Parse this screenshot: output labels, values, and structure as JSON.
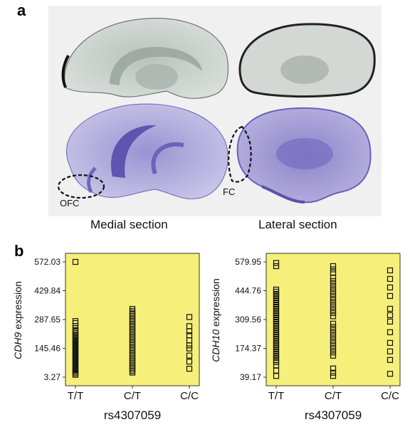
{
  "panel_a": {
    "letter": "a",
    "left_caption": "Medial section",
    "right_caption": "Lateral section",
    "left_region": "OFC",
    "right_region": "FC"
  },
  "panel_b": {
    "letter": "b"
  },
  "chart_data": [
    {
      "type": "scatter",
      "title": "",
      "xlabel": "rs4307059",
      "ylabel_gene": "CDH9",
      "ylabel_suffix": " expression",
      "categories": [
        "T/T",
        "C/T",
        "C/C"
      ],
      "y_ticks": [
        "572.03",
        "429.84",
        "287.65",
        "145.46",
        "3.27"
      ],
      "ylim": [
        3.27,
        572.03
      ],
      "grid": false,
      "background": "#f6ef7a",
      "series": [
        {
          "category": "T/T",
          "values": [
            572,
            280,
            270,
            255,
            245,
            235,
            228,
            220,
            212,
            205,
            198,
            190,
            183,
            176,
            169,
            162,
            155,
            148,
            141,
            134,
            127,
            120,
            113,
            106,
            99,
            92,
            85,
            78,
            71,
            64,
            57,
            50,
            43,
            36,
            29,
            22,
            15
          ]
        },
        {
          "category": "C/T",
          "values": [
            340,
            330,
            322,
            314,
            306,
            298,
            290,
            282,
            274,
            266,
            258,
            250,
            242,
            234,
            226,
            218,
            210,
            202,
            194,
            186,
            178,
            170,
            162,
            154,
            146,
            138,
            130,
            122,
            114,
            106,
            98,
            90,
            82,
            74,
            66,
            58,
            50,
            42,
            34,
            26
          ]
        },
        {
          "category": "C/C",
          "values": [
            300,
            255,
            230,
            210,
            185,
            160,
            145,
            110,
            80,
            45
          ]
        }
      ]
    },
    {
      "type": "scatter",
      "title": "",
      "xlabel": "rs4307059",
      "ylabel_gene": "CDH10",
      "ylabel_suffix": " expression",
      "categories": [
        "T/T",
        "C/T",
        "C/C"
      ],
      "y_ticks": [
        "579.95",
        "444.76",
        "309.56",
        "174.37",
        "39.17"
      ],
      "ylim": [
        39.17,
        579.95
      ],
      "grid": false,
      "background": "#f6ef7a",
      "series": [
        {
          "category": "T/T",
          "values": [
            575,
            560,
            450,
            440,
            430,
            420,
            410,
            400,
            390,
            380,
            370,
            360,
            350,
            340,
            330,
            320,
            310,
            300,
            290,
            280,
            270,
            260,
            250,
            240,
            230,
            220,
            210,
            200,
            190,
            180,
            170,
            160,
            150,
            140,
            130,
            120,
            110,
            95,
            70,
            45
          ]
        },
        {
          "category": "C/T",
          "values": [
            560,
            545,
            530,
            505,
            490,
            475,
            460,
            445,
            430,
            415,
            400,
            385,
            370,
            355,
            340,
            325,
            290,
            275,
            260,
            245,
            230,
            215,
            200,
            185,
            170,
            155,
            140,
            80,
            60,
            45
          ]
        },
        {
          "category": "C/C",
          "values": [
            540,
            500,
            460,
            420,
            360,
            330,
            300,
            250,
            200,
            160,
            120,
            55
          ]
        }
      ]
    }
  ]
}
